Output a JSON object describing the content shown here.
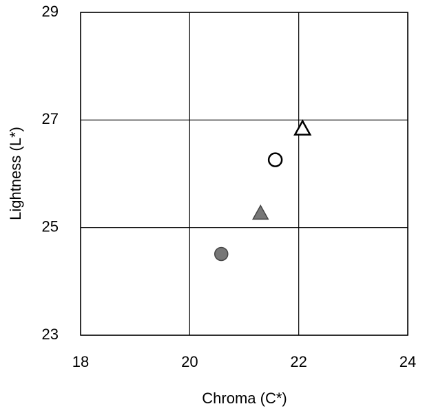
{
  "chart_data": {
    "type": "scatter",
    "x_label": "Chroma (C*)",
    "y_label": "Lightness (L*)",
    "xlim": [
      18,
      24
    ],
    "xticks": [
      18,
      20,
      22,
      24
    ],
    "ylim": [
      23,
      29
    ],
    "yticks": [
      23,
      25,
      27,
      29
    ],
    "grid": true,
    "series": [
      {
        "marker": "circle",
        "filled": true,
        "color": "#777777",
        "x": [
          20.58
        ],
        "values": [
          24.51
        ]
      },
      {
        "marker": "triangle",
        "filled": true,
        "color": "#777777",
        "x": [
          21.3
        ],
        "values": [
          25.27
        ]
      },
      {
        "marker": "circle",
        "filled": false,
        "color": "#000000",
        "x": [
          21.57
        ],
        "values": [
          26.26
        ]
      },
      {
        "marker": "triangle",
        "filled": false,
        "color": "#000000",
        "x": [
          22.07
        ],
        "values": [
          26.84
        ]
      }
    ]
  }
}
